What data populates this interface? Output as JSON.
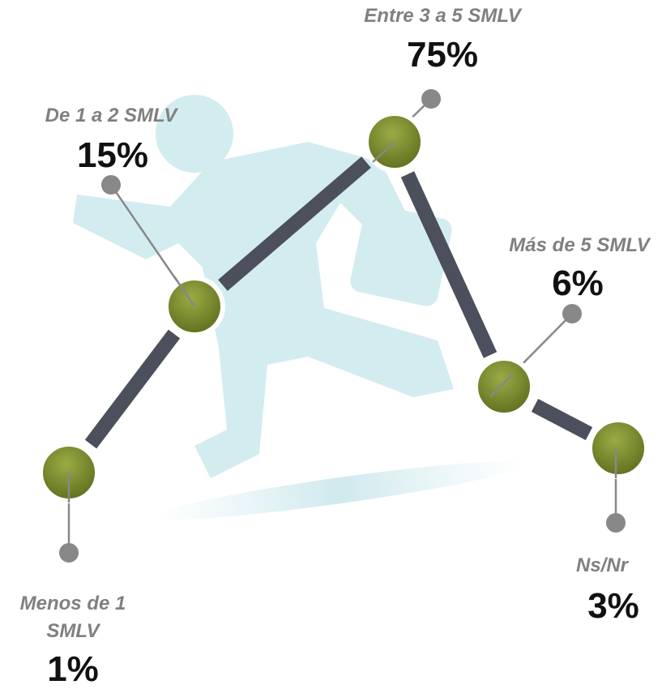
{
  "nodes": [
    {
      "label": "Menos de 1 SMLV",
      "value": "1%"
    },
    {
      "label": "De 1 a 2 SMLV",
      "value": "15%"
    },
    {
      "label": "Entre 3 a 5 SMLV",
      "value": "75%"
    },
    {
      "label": "Más de 5 SMLV",
      "value": "6%"
    },
    {
      "label": "Ns/Nr",
      "value": "3%"
    }
  ]
}
